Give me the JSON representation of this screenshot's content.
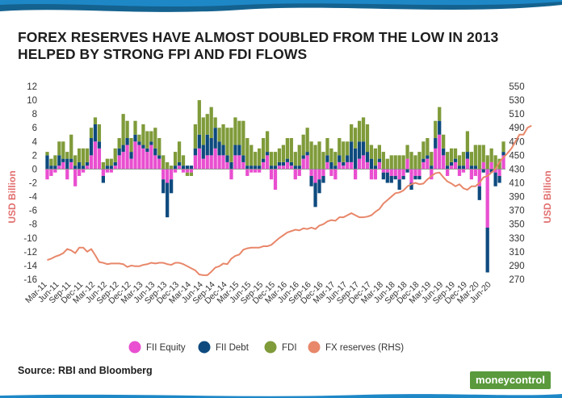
{
  "title_lines": [
    "FOREX RESERVES HAVE ALMOST DOUBLED FROM THE LOW IN 2013",
    "HELPED BY STRONG FPI AND FDI FLOWS"
  ],
  "source": "Source: RBI and Bloomberg",
  "brand": "moneycontrol",
  "colors": {
    "fii_equity": "#e94fd0",
    "fii_debt": "#0e4a7e",
    "fdi": "#7f9b3a",
    "fx_reserves": "#e8876a",
    "grid": "#d9d9d9",
    "text": "#333333",
    "brand": "#5a9a3c"
  },
  "chart_data": {
    "type": "bar",
    "stacked": true,
    "ylabel": "USD Billion",
    "y2label": "USD Billion",
    "ylim": [
      -16,
      12
    ],
    "y2lim": [
      270,
      550
    ],
    "yticks": [
      12,
      10,
      8,
      6,
      4,
      2,
      0,
      -2,
      -4,
      -6,
      -8,
      -10,
      -12,
      -14,
      -16
    ],
    "y2ticks": [
      550,
      530,
      510,
      490,
      470,
      450,
      430,
      410,
      390,
      370,
      350,
      330,
      310,
      290,
      270
    ],
    "legend_position": "bottom",
    "grid": false,
    "x_tick_labels": [
      "Mar-11",
      "Jun-11",
      "Sep-11",
      "Dec-11",
      "Mar-12",
      "Jun-12",
      "Sep-12",
      "Dec-12",
      "Mar-13",
      "Jun-13",
      "Sep-13",
      "Dec-13",
      "Mar-14",
      "Jun-14",
      "Sep-14",
      "Dec-14",
      "Mar-15",
      "Jun-15",
      "Sep-15",
      "Dec-15",
      "Mar-16",
      "Jun-16",
      "Sep-16",
      "Dec-16",
      "Mar-17",
      "Jun-17",
      "Sep-17",
      "Dec-17",
      "Mar-18",
      "Jun-18",
      "Sep-18",
      "Dec-18",
      "Mar-19",
      "Jun-19",
      "Sep-19",
      "Dec-19",
      "Mar-20",
      "Jun-20"
    ],
    "x_tick_every": 3,
    "series": [
      {
        "name": "FII Equity",
        "type": "bar",
        "values": [
          -1.5,
          -1.0,
          -0.5,
          0.5,
          1.0,
          -1.5,
          1.0,
          -2.5,
          -1.0,
          -0.5,
          0.5,
          2.0,
          4.0,
          3.0,
          -1.0,
          -0.5,
          -0.5,
          0.5,
          2.0,
          2.5,
          3.5,
          1.5,
          4.0,
          3.5,
          3.0,
          2.5,
          3.5,
          2.0,
          1.5,
          -1.5,
          -2.0,
          -1.5,
          -0.5,
          0.5,
          -0.5,
          -0.5,
          -0.5,
          2.0,
          3.0,
          1.5,
          2.0,
          2.0,
          3.0,
          2.0,
          2.0,
          1.0,
          -1.5,
          2.0,
          2.0,
          1.0,
          -1.0,
          -0.5,
          -0.5,
          -0.5,
          1.0,
          2.0,
          -1.5,
          -3.0,
          0.5,
          0.5,
          1.0,
          0.5,
          -1.5,
          -1.0,
          1.5,
          2.0,
          -1.0,
          -2.0,
          -1.5,
          -1.0,
          1.0,
          -1.0,
          -1.5,
          1.0,
          0.5,
          1.0,
          1.0,
          -1.5,
          1.5,
          2.0,
          1.0,
          -1.5,
          -1.5,
          1.0,
          -0.5,
          -0.5,
          -1.0,
          -1.0,
          -1.5,
          -1.0,
          1.5,
          -2.0,
          -1.0,
          -1.0,
          1.0,
          1.5,
          -1.5,
          3.0,
          5.0,
          2.0,
          -1.0,
          0.5,
          1.0,
          -1.0,
          -0.5,
          1.5,
          -1.5,
          -1.0,
          -2.5,
          1.0,
          -8.5,
          1.0,
          -0.5,
          -1.0,
          2.0
        ]
      },
      {
        "name": "FII Debt",
        "type": "bar",
        "values": [
          2.0,
          0.5,
          0.5,
          1.5,
          0.5,
          1.5,
          0.5,
          0.5,
          1.0,
          0.5,
          0.5,
          2.5,
          2.5,
          1.0,
          -1.0,
          0.5,
          0.5,
          0.5,
          1.0,
          1.0,
          1.0,
          1.0,
          1.0,
          0.5,
          0.5,
          0.5,
          0.5,
          1.0,
          0.5,
          -2.0,
          -5.0,
          -2.0,
          0.5,
          0.5,
          0.5,
          0.5,
          0.5,
          1.0,
          2.0,
          2.0,
          3.0,
          2.5,
          3.0,
          2.0,
          1.5,
          1.0,
          1.0,
          1.5,
          1.5,
          1.0,
          0.5,
          0.5,
          0.5,
          0.5,
          0.5,
          0.5,
          0.5,
          0.5,
          0.5,
          0.5,
          0.5,
          0.5,
          0.5,
          0.5,
          0.5,
          0.5,
          -1.5,
          -3.5,
          -2.0,
          -1.0,
          1.0,
          1.0,
          0.5,
          1.0,
          0.5,
          1.0,
          3.0,
          3.0,
          2.5,
          2.0,
          1.5,
          1.5,
          0.5,
          0.5,
          -1.0,
          -1.5,
          -1.0,
          -0.5,
          -1.5,
          -0.5,
          -0.5,
          -1.0,
          -0.5,
          -0.5,
          0.5,
          0.5,
          0.5,
          1.5,
          2.0,
          1.0,
          0.5,
          0.5,
          0.5,
          0.5,
          0.5,
          1.0,
          0.5,
          0.5,
          -2.0,
          -0.5,
          -6.5,
          -0.5,
          -2.0,
          -1.0,
          0.5
        ]
      },
      {
        "name": "FDI",
        "type": "bar",
        "values": [
          0.5,
          1.0,
          1.5,
          2.0,
          2.5,
          1.0,
          3.5,
          1.5,
          2.0,
          2.5,
          2.0,
          1.5,
          1.0,
          2.5,
          1.0,
          1.0,
          1.0,
          2.0,
          1.5,
          4.5,
          2.5,
          2.0,
          2.0,
          1.0,
          3.0,
          2.5,
          1.5,
          3.0,
          2.5,
          2.0,
          1.0,
          0.5,
          2.0,
          3.0,
          1.5,
          -0.5,
          -0.5,
          3.5,
          5.0,
          4.0,
          3.0,
          4.5,
          1.5,
          2.0,
          3.0,
          4.0,
          5.0,
          4.0,
          3.5,
          5.0,
          4.0,
          3.0,
          2.0,
          2.5,
          3.0,
          3.0,
          2.0,
          2.0,
          2.0,
          2.5,
          3.0,
          3.5,
          2.0,
          3.0,
          3.0,
          3.5,
          4.0,
          3.5,
          4.0,
          2.5,
          2.5,
          2.0,
          2.0,
          2.5,
          3.0,
          2.0,
          2.5,
          3.0,
          3.0,
          3.5,
          4.0,
          2.0,
          2.5,
          2.0,
          2.5,
          1.5,
          2.0,
          2.0,
          2.0,
          2.0,
          2.0,
          2.5,
          2.0,
          2.5,
          2.5,
          2.5,
          2.0,
          2.5,
          2.0,
          2.0,
          2.0,
          2.0,
          1.5,
          1.5,
          2.0,
          3.0,
          2.0,
          3.0,
          3.5,
          2.5,
          2.0,
          2.0,
          2.0,
          1.5,
          1.5
        ]
      },
      {
        "name": "FX reserves (RHS)",
        "type": "line",
        "axis": "right",
        "values": [
          298,
          300,
          303,
          305,
          308,
          314,
          312,
          308,
          316,
          316,
          310,
          314,
          305,
          295,
          294,
          292,
          293,
          293,
          293,
          292,
          288,
          290,
          289,
          289,
          291,
          292,
          294,
          293,
          294,
          294,
          292,
          291,
          294,
          294,
          292,
          289,
          286,
          283,
          277,
          276,
          276,
          281,
          287,
          289,
          293,
          292,
          300,
          304,
          306,
          313,
          315,
          316,
          316,
          316,
          318,
          318,
          320,
          325,
          330,
          334,
          338,
          340,
          342,
          341,
          344,
          343,
          345,
          343,
          348,
          350,
          354,
          356,
          355,
          360,
          360,
          363,
          366,
          363,
          360,
          360,
          361,
          363,
          368,
          372,
          380,
          385,
          390,
          395,
          396,
          399,
          405,
          408,
          410,
          408,
          409,
          415,
          420,
          424,
          425,
          418,
          412,
          409,
          405,
          408,
          402,
          400,
          405,
          405,
          410,
          418,
          420,
          425,
          430,
          440,
          447,
          453,
          460,
          470,
          480,
          480,
          490,
          493
        ]
      }
    ]
  }
}
